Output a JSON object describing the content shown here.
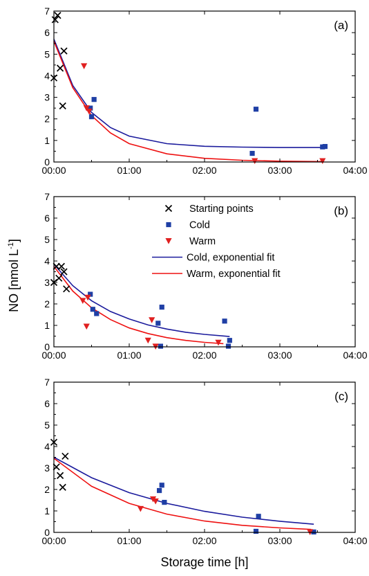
{
  "figure": {
    "ylabel": "NO [nmol L",
    "ylabel_sup": "-1",
    "ylabel_close": "]",
    "xlabel": "Storage time [h]"
  },
  "colors": {
    "marker_x": "#000000",
    "cold": "#1f3fa5",
    "warm": "#e02020",
    "cold_fit": "#1a1a9c",
    "warm_fit": "#ee1010"
  },
  "legend": {
    "placement": "panel (b) top-right",
    "entries": [
      {
        "label": "Starting points",
        "kind": "x-marker"
      },
      {
        "label": "Cold",
        "kind": "square-marker"
      },
      {
        "label": "Warm",
        "kind": "triangle-marker"
      },
      {
        "label": "Cold, exponential fit",
        "kind": "line-cold"
      },
      {
        "label": "Warm, exponential fit",
        "kind": "line-warm"
      }
    ]
  },
  "chart_data": [
    {
      "type": "scatter",
      "panel": "(a)",
      "xlim": [
        "00:00",
        "04:00"
      ],
      "ylim": [
        0,
        7
      ],
      "xticks": [
        "00:00",
        "01:00",
        "02:00",
        "03:00",
        "04:00"
      ],
      "yticks": [
        "0",
        "1",
        "2",
        "3",
        "4",
        "5",
        "6",
        "7"
      ],
      "series": [
        {
          "name": "Starting points",
          "marker": "x",
          "points": [
            [
              "00:00",
              3.9
            ],
            [
              "00:01",
              6.6
            ],
            [
              "00:03",
              6.8
            ],
            [
              "00:05",
              4.35
            ],
            [
              "00:07",
              2.6
            ],
            [
              "00:08",
              5.15
            ]
          ]
        },
        {
          "name": "Cold",
          "marker": "square",
          "points": [
            [
              "00:29",
              2.5
            ],
            [
              "00:30",
              2.1
            ],
            [
              "00:32",
              2.9
            ],
            [
              "02:38",
              0.4
            ],
            [
              "02:41",
              2.45
            ],
            [
              "03:34",
              0.7
            ],
            [
              "03:36",
              0.72
            ]
          ]
        },
        {
          "name": "Warm",
          "marker": "triangle",
          "points": [
            [
              "00:24",
              4.45
            ],
            [
              "00:26",
              2.5
            ],
            [
              "00:28",
              2.35
            ],
            [
              "02:40",
              0.05
            ],
            [
              "03:34",
              0.05
            ]
          ]
        },
        {
          "name": "Cold, exponential fit",
          "line": true,
          "points": [
            [
              "00:00",
              5.7
            ],
            [
              "00:15",
              3.55
            ],
            [
              "00:30",
              2.3
            ],
            [
              "00:45",
              1.6
            ],
            [
              "01:00",
              1.2
            ],
            [
              "01:30",
              0.85
            ],
            [
              "02:00",
              0.73
            ],
            [
              "02:30",
              0.69
            ],
            [
              "03:00",
              0.67
            ],
            [
              "03:35",
              0.67
            ]
          ]
        },
        {
          "name": "Warm, exponential fit",
          "line": true,
          "points": [
            [
              "00:00",
              5.6
            ],
            [
              "00:15",
              3.45
            ],
            [
              "00:30",
              2.15
            ],
            [
              "00:45",
              1.35
            ],
            [
              "01:00",
              0.85
            ],
            [
              "01:30",
              0.38
            ],
            [
              "02:00",
              0.17
            ],
            [
              "02:30",
              0.08
            ],
            [
              "03:00",
              0.04
            ],
            [
              "03:35",
              0.02
            ]
          ]
        }
      ]
    },
    {
      "type": "scatter",
      "panel": "(b)",
      "xlim": [
        "00:00",
        "04:00"
      ],
      "ylim": [
        0,
        7
      ],
      "xticks": [
        "00:00",
        "01:00",
        "02:00",
        "03:00",
        "04:00"
      ],
      "yticks": [
        "0",
        "1",
        "2",
        "3",
        "4",
        "5",
        "6",
        "7"
      ],
      "series": [
        {
          "name": "Starting points",
          "marker": "x",
          "points": [
            [
              "00:00",
              3.0
            ],
            [
              "00:02",
              3.75
            ],
            [
              "00:04",
              3.2
            ],
            [
              "00:06",
              3.75
            ],
            [
              "00:08",
              3.5
            ],
            [
              "00:10",
              2.7
            ]
          ]
        },
        {
          "name": "Cold",
          "marker": "square",
          "points": [
            [
              "00:29",
              2.45
            ],
            [
              "00:31",
              1.75
            ],
            [
              "00:34",
              1.55
            ],
            [
              "01:23",
              1.1
            ],
            [
              "01:25",
              0.03
            ],
            [
              "01:26",
              1.85
            ],
            [
              "02:16",
              1.2
            ],
            [
              "02:19",
              0.03
            ],
            [
              "02:20",
              0.3
            ]
          ]
        },
        {
          "name": "Warm",
          "marker": "triangle",
          "points": [
            [
              "00:23",
              2.15
            ],
            [
              "00:26",
              0.95
            ],
            [
              "00:27",
              2.3
            ],
            [
              "01:15",
              0.3
            ],
            [
              "01:18",
              1.25
            ],
            [
              "01:21",
              0.02
            ],
            [
              "02:11",
              0.2
            ]
          ]
        },
        {
          "name": "Cold, exponential fit",
          "line": true,
          "points": [
            [
              "00:00",
              3.85
            ],
            [
              "00:15",
              2.85
            ],
            [
              "00:30",
              2.15
            ],
            [
              "00:45",
              1.65
            ],
            [
              "01:00",
              1.3
            ],
            [
              "01:15",
              1.02
            ],
            [
              "01:30",
              0.83
            ],
            [
              "01:45",
              0.68
            ],
            [
              "02:00",
              0.58
            ],
            [
              "02:20",
              0.48
            ]
          ]
        },
        {
          "name": "Warm, exponential fit",
          "line": true,
          "points": [
            [
              "00:00",
              3.75
            ],
            [
              "00:15",
              2.6
            ],
            [
              "00:30",
              1.82
            ],
            [
              "00:45",
              1.27
            ],
            [
              "01:00",
              0.88
            ],
            [
              "01:15",
              0.62
            ],
            [
              "01:30",
              0.43
            ],
            [
              "01:45",
              0.3
            ],
            [
              "02:00",
              0.21
            ],
            [
              "02:15",
              0.15
            ]
          ]
        }
      ]
    },
    {
      "type": "scatter",
      "panel": "(c)",
      "xlim": [
        "00:00",
        "04:00"
      ],
      "ylim": [
        0,
        7
      ],
      "xticks": [
        "00:00",
        "01:00",
        "02:00",
        "03:00",
        "04:00"
      ],
      "yticks": [
        "0",
        "1",
        "2",
        "3",
        "4",
        "5",
        "6",
        "7"
      ],
      "series": [
        {
          "name": "Starting points",
          "marker": "x",
          "points": [
            [
              "00:00",
              4.2
            ],
            [
              "00:02",
              3.05
            ],
            [
              "00:05",
              2.65
            ],
            [
              "00:07",
              2.1
            ],
            [
              "00:09",
              3.55
            ]
          ]
        },
        {
          "name": "Cold",
          "marker": "square",
          "points": [
            [
              "01:24",
              1.95
            ],
            [
              "01:26",
              2.2
            ],
            [
              "01:28",
              1.4
            ],
            [
              "02:41",
              0.05
            ],
            [
              "02:43",
              0.75
            ],
            [
              "03:27",
              0.02
            ]
          ]
        },
        {
          "name": "Warm",
          "marker": "triangle",
          "points": [
            [
              "01:09",
              1.1
            ],
            [
              "01:19",
              1.55
            ],
            [
              "01:21",
              1.45
            ],
            [
              "03:24",
              0.02
            ]
          ]
        },
        {
          "name": "Cold, exponential fit",
          "line": true,
          "points": [
            [
              "00:00",
              3.5
            ],
            [
              "00:30",
              2.55
            ],
            [
              "01:00",
              1.85
            ],
            [
              "01:30",
              1.35
            ],
            [
              "02:00",
              0.98
            ],
            [
              "02:30",
              0.71
            ],
            [
              "03:00",
              0.52
            ],
            [
              "03:27",
              0.38
            ]
          ]
        },
        {
          "name": "Warm, exponential fit",
          "line": true,
          "points": [
            [
              "00:00",
              3.45
            ],
            [
              "00:30",
              2.15
            ],
            [
              "01:00",
              1.35
            ],
            [
              "01:30",
              0.85
            ],
            [
              "02:00",
              0.53
            ],
            [
              "02:30",
              0.33
            ],
            [
              "03:00",
              0.21
            ],
            [
              "03:25",
              0.14
            ]
          ]
        }
      ]
    }
  ]
}
